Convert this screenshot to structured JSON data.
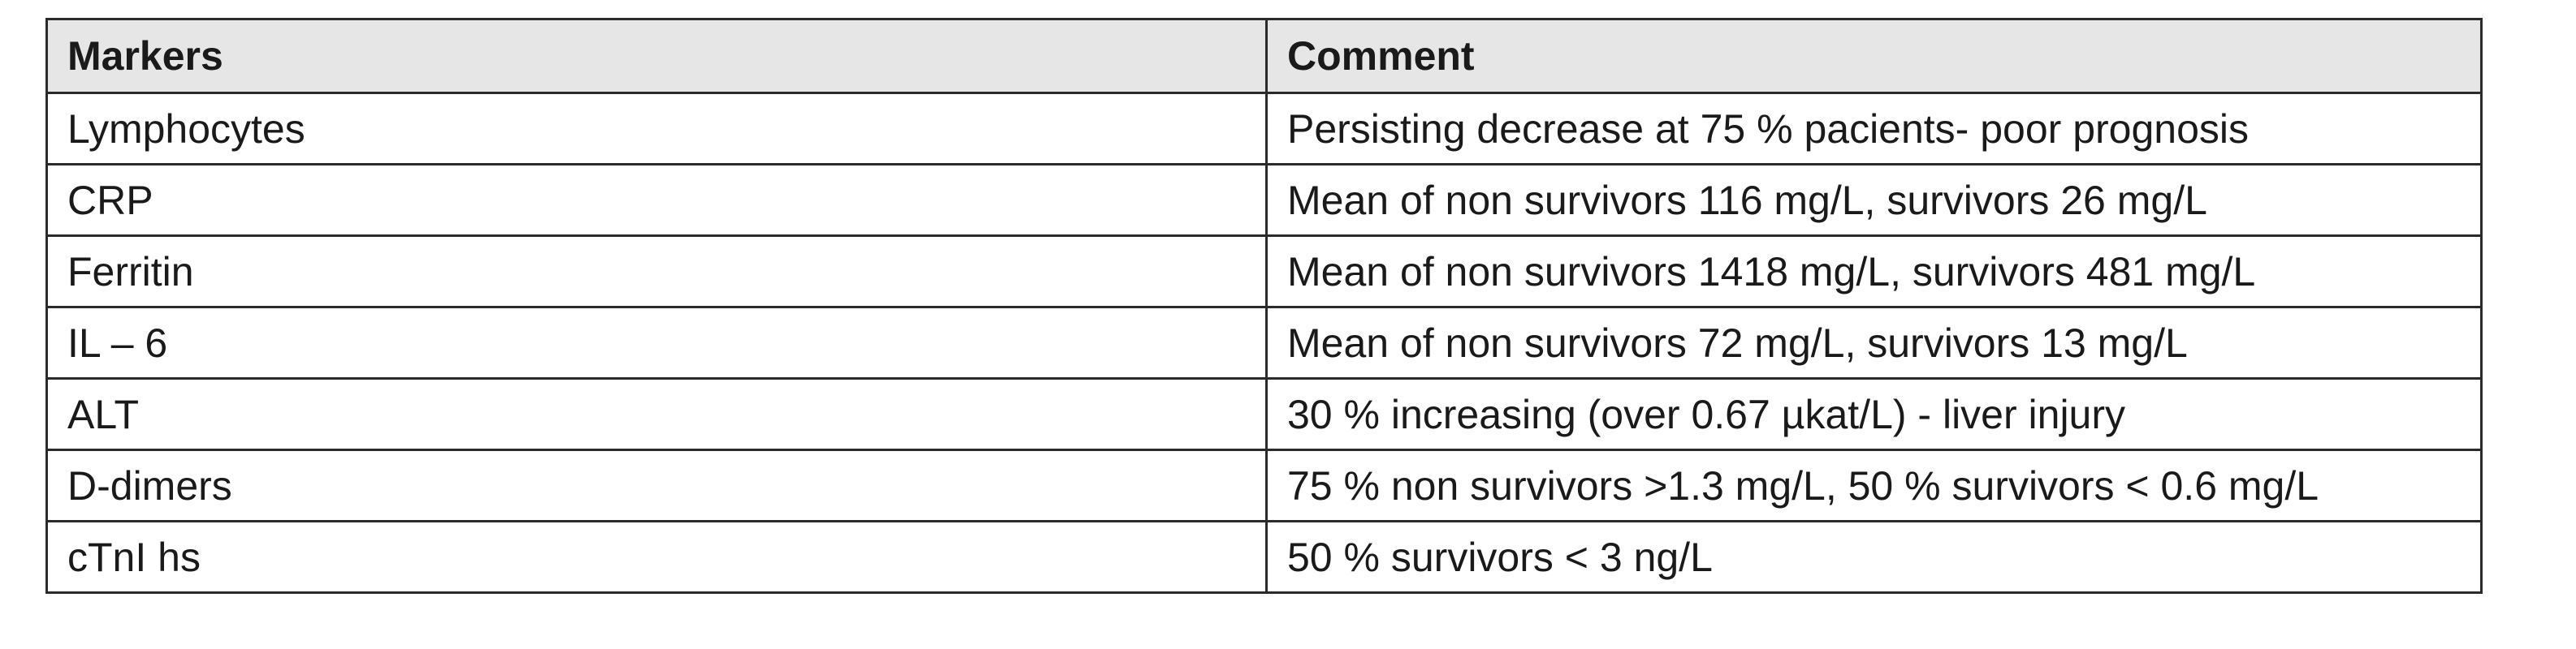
{
  "table": {
    "headers": [
      "Markers",
      "Comment"
    ],
    "rows": [
      {
        "marker": "Lymphocytes",
        "comment": "Persisting decrease at 75 % pacients- poor prognosis"
      },
      {
        "marker": "CRP",
        "comment": "Mean of non survivors 116 mg/L, survivors 26 mg/L"
      },
      {
        "marker": "Ferritin",
        "comment": "Mean of non survivors 1418 mg/L, survivors 481 mg/L"
      },
      {
        "marker": "IL – 6",
        "comment": "Mean of non survivors  72 mg/L, survivors  13 mg/L"
      },
      {
        "marker": "ALT",
        "comment": "30 % increasing (over 0.67 µkat/L) - liver injury"
      },
      {
        "marker": "D-dimers",
        "comment": "75 % non survivors >1.3 mg/L, 50 % survivors <  0.6 mg/L"
      },
      {
        "marker": "cTnI hs",
        "comment": "50 % survivors <  3 ng/L"
      }
    ]
  }
}
